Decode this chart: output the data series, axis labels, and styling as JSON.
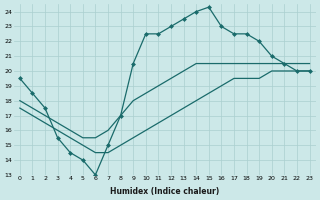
{
  "xlabel": "Humidex (Indice chaleur)",
  "ylabel": "",
  "bg_color": "#cce8e8",
  "grid_color": "#aacfcf",
  "line_color": "#1a6b6b",
  "xlim": [
    -0.5,
    23.5
  ],
  "ylim": [
    13,
    24.5
  ],
  "yticks": [
    13,
    14,
    15,
    16,
    17,
    18,
    19,
    20,
    21,
    22,
    23,
    24
  ],
  "xticks": [
    0,
    1,
    2,
    3,
    4,
    5,
    6,
    7,
    8,
    9,
    10,
    11,
    12,
    13,
    14,
    15,
    16,
    17,
    18,
    19,
    20,
    21,
    22,
    23
  ],
  "line1_x": [
    0,
    1,
    2,
    3,
    4,
    5,
    6,
    7,
    8,
    9,
    10,
    11,
    12,
    13,
    14,
    15,
    16,
    17,
    18,
    19,
    20,
    21,
    22,
    23
  ],
  "line1_y": [
    19.5,
    18.5,
    17.5,
    15.5,
    14.5,
    14.0,
    13.0,
    15.0,
    17.0,
    20.5,
    22.5,
    22.5,
    23.0,
    23.5,
    24.0,
    24.3,
    23.0,
    22.5,
    22.5,
    22.0,
    21.0,
    20.5,
    20.0,
    20.0
  ],
  "line2_x": [
    0,
    1,
    2,
    3,
    4,
    5,
    6,
    7,
    8,
    9,
    10,
    11,
    12,
    13,
    14,
    15,
    16,
    17,
    18,
    19,
    20,
    21,
    22,
    23
  ],
  "line2_y": [
    18.0,
    17.5,
    17.0,
    16.5,
    16.0,
    15.5,
    15.5,
    16.0,
    17.0,
    18.0,
    18.5,
    19.0,
    19.5,
    20.0,
    20.5,
    20.5,
    20.5,
    20.5,
    20.5,
    20.5,
    20.5,
    20.5,
    20.5,
    20.5
  ],
  "line3_x": [
    0,
    1,
    2,
    3,
    4,
    5,
    6,
    7,
    8,
    9,
    10,
    11,
    12,
    13,
    14,
    15,
    16,
    17,
    18,
    19,
    20,
    21,
    22,
    23
  ],
  "line3_y": [
    17.5,
    17.0,
    16.5,
    16.0,
    15.5,
    15.0,
    14.5,
    14.5,
    15.0,
    15.5,
    16.0,
    16.5,
    17.0,
    17.5,
    18.0,
    18.5,
    19.0,
    19.5,
    19.5,
    19.5,
    20.0,
    20.0,
    20.0,
    20.0
  ]
}
